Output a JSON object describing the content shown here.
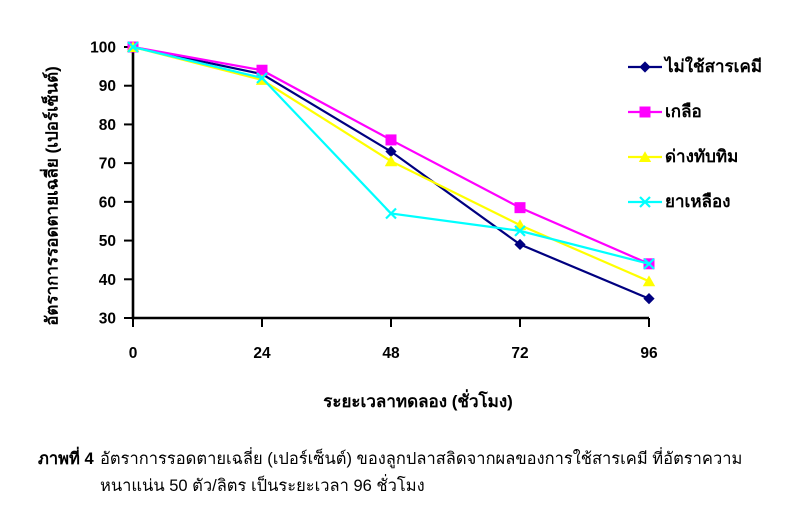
{
  "figure": {
    "label": "ภาพที่ 4",
    "caption_line1": "อัตราการรอดตายเฉลี่ย (เปอร์เซ็นต์) ของลูกปลาสลิดจากผลของการใช้สารเคมี ที่อัตราความ",
    "caption_line2": "หนาแน่น 50 ตัว/ลิตร เป็นระยะเวลา 96 ชั่วโมง"
  },
  "chart_data": {
    "type": "line",
    "xlabel": "ระยะเวลาทดลอง (ชั่วโมง)",
    "ylabel": "อัตราการรอดตายเฉลี่ย (เปอร์เซ็นต์)",
    "x": [
      0,
      24,
      48,
      72,
      96
    ],
    "x_ticks": [
      "0",
      "24",
      "48",
      "72",
      "96"
    ],
    "y_ticks": [
      100,
      90,
      80,
      70,
      60,
      50,
      40,
      30
    ],
    "ylim": [
      30,
      100
    ],
    "grid": false,
    "legend_position": "right",
    "background_color": "#FFFFFF",
    "axis_color": "#000000",
    "series": [
      {
        "name": "ไม่ใช้สารเคมี",
        "marker": "diamond",
        "color": "#000080",
        "values": [
          100,
          93,
          73,
          49,
          35
        ]
      },
      {
        "name": "เกลือ",
        "marker": "square",
        "color": "#FF00FF",
        "values": [
          100,
          94,
          76,
          58.5,
          44
        ]
      },
      {
        "name": "ด่างทับทิม",
        "marker": "triangle",
        "color": "#FFFF00",
        "values": [
          100,
          91.5,
          70.5,
          54,
          39.5
        ]
      },
      {
        "name": "ยาเหลือง",
        "marker": "x",
        "color": "#00FFFF",
        "values": [
          100,
          92,
          57,
          52.5,
          44
        ]
      }
    ]
  }
}
